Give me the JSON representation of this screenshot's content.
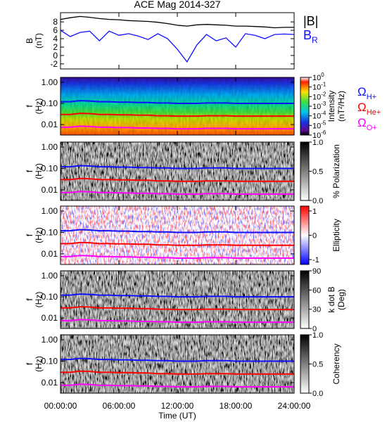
{
  "chart_data": [
    {
      "type": "line",
      "title": "ACE Mag 2014-327",
      "ylabel": "B",
      "ylabel_unit": "(nT)",
      "x": [
        0,
        1,
        2,
        3,
        4,
        5,
        6,
        7,
        8,
        9,
        10,
        11,
        12,
        13,
        14,
        15,
        16,
        17,
        18,
        19,
        20,
        21,
        22,
        23,
        24
      ],
      "xlim": [
        0,
        24
      ],
      "ylim": [
        -3.2,
        10.2
      ],
      "yticks": [
        -2,
        0,
        2,
        4,
        6,
        8
      ],
      "series": [
        {
          "name": "|B|",
          "color": "#000000",
          "values": [
            8.6,
            9.0,
            9.3,
            9.1,
            8.8,
            8.6,
            8.5,
            8.3,
            8.2,
            8.1,
            7.9,
            7.6,
            7.2,
            7.0,
            7.3,
            7.4,
            7.3,
            7.2,
            7.0,
            7.0,
            6.9,
            6.8,
            6.6,
            6.7,
            6.7
          ]
        },
        {
          "name": "B",
          "name_sub": "R",
          "color": "#1010ff",
          "values": [
            6.0,
            4.5,
            5.5,
            5.8,
            3.5,
            5.8,
            4.8,
            5.2,
            4.6,
            3.8,
            5.2,
            4.0,
            1.5,
            -1.5,
            2.5,
            5.0,
            3.5,
            4.2,
            2.0,
            5.2,
            4.8,
            4.0,
            5.0,
            5.1,
            5.0
          ]
        }
      ]
    },
    {
      "type": "spectrogram",
      "ylabel": "f",
      "ylabel_unit": "(Hz)",
      "log_y": true,
      "colormap": "rainbow",
      "x": [
        0,
        1,
        2,
        3,
        4,
        5,
        6,
        7,
        8,
        9,
        10,
        11,
        12,
        13,
        14,
        15,
        16,
        17,
        18,
        19,
        20,
        21,
        22,
        23,
        24
      ],
      "xlim": [
        0,
        24
      ],
      "ylim": [
        0.0032,
        1.7
      ],
      "yticks": [
        {
          "value": 1,
          "label": "1.00"
        },
        {
          "value": 0.1,
          "label": "0.10"
        },
        {
          "value": 0.01,
          "label": "0.01"
        }
      ],
      "colorbar": {
        "label": "Intensity",
        "label_unit": "(nT²/Hz)",
        "log": true,
        "zlim": [
          1e-06,
          1
        ],
        "ticks": [
          {
            "value": 1,
            "label": "10",
            "sup": "0"
          },
          {
            "value": 0.1,
            "label": "10",
            "sup": "-1"
          },
          {
            "value": 0.01,
            "label": "10",
            "sup": "-2"
          },
          {
            "value": 0.001,
            "label": "10",
            "sup": "-3"
          },
          {
            "value": 0.0001,
            "label": "10",
            "sup": "-4"
          },
          {
            "value": 1e-05,
            "label": "10",
            "sup": "-5"
          },
          {
            "value": 1e-06,
            "label": "10",
            "sup": "-6"
          }
        ]
      },
      "series": [
        {
          "name": "Ω",
          "name_sub": "H+",
          "color": "#1010ff",
          "values": [
            0.12,
            0.12,
            0.135,
            0.13,
            0.12,
            0.12,
            0.115,
            0.115,
            0.11,
            0.11,
            0.105,
            0.105,
            0.1,
            0.1,
            0.1,
            0.105,
            0.105,
            0.105,
            0.1,
            0.1,
            0.1,
            0.1,
            0.1,
            0.1,
            0.1
          ]
        },
        {
          "name": "Ω",
          "name_sub": "He+",
          "color": "#ff0000",
          "values": [
            0.03,
            0.03,
            0.034,
            0.033,
            0.03,
            0.03,
            0.029,
            0.029,
            0.028,
            0.028,
            0.026,
            0.026,
            0.025,
            0.025,
            0.025,
            0.026,
            0.026,
            0.026,
            0.025,
            0.025,
            0.025,
            0.025,
            0.025,
            0.025,
            0.025
          ]
        },
        {
          "name": "Ω",
          "name_sub": "O+",
          "color": "#ff00ff",
          "values": [
            0.0075,
            0.0075,
            0.0084,
            0.0081,
            0.0075,
            0.0075,
            0.0072,
            0.0072,
            0.0069,
            0.0069,
            0.0066,
            0.0066,
            0.0063,
            0.0063,
            0.0063,
            0.0066,
            0.0066,
            0.0066,
            0.0063,
            0.0063,
            0.0063,
            0.0063,
            0.0063,
            0.0063,
            0.0063
          ]
        }
      ]
    },
    {
      "type": "spectrogram",
      "ylabel": "f",
      "ylabel_unit": "(Hz)",
      "log_y": true,
      "colormap": "gray",
      "x": [
        0,
        1,
        2,
        3,
        4,
        5,
        6,
        7,
        8,
        9,
        10,
        11,
        12,
        13,
        14,
        15,
        16,
        17,
        18,
        19,
        20,
        21,
        22,
        23,
        24
      ],
      "xlim": [
        0,
        24
      ],
      "ylim": [
        0.0032,
        1.7
      ],
      "yticks": [
        {
          "value": 1,
          "label": "1.00"
        },
        {
          "value": 0.1,
          "label": "0.10"
        },
        {
          "value": 0.01,
          "label": "0.01"
        }
      ],
      "colorbar": {
        "label": "% Polarization",
        "zlim": [
          0,
          1
        ],
        "ticks": [
          {
            "value": 1,
            "label": "1.0"
          },
          {
            "value": 0.5,
            "label": "0.5"
          },
          {
            "value": 0,
            "label": "0.0"
          }
        ]
      },
      "series": [
        {
          "color": "#1010ff",
          "values": [
            0.12,
            0.12,
            0.135,
            0.13,
            0.12,
            0.12,
            0.115,
            0.115,
            0.11,
            0.11,
            0.105,
            0.105,
            0.1,
            0.1,
            0.1,
            0.105,
            0.105,
            0.105,
            0.1,
            0.1,
            0.1,
            0.1,
            0.1,
            0.1,
            0.1
          ]
        },
        {
          "color": "#ff0000",
          "values": [
            0.03,
            0.03,
            0.034,
            0.033,
            0.03,
            0.03,
            0.029,
            0.029,
            0.028,
            0.028,
            0.026,
            0.026,
            0.025,
            0.025,
            0.025,
            0.026,
            0.026,
            0.026,
            0.025,
            0.025,
            0.025,
            0.025,
            0.025,
            0.025,
            0.025
          ]
        },
        {
          "color": "#ff00ff",
          "values": [
            0.0075,
            0.0075,
            0.0084,
            0.0081,
            0.0075,
            0.0075,
            0.0072,
            0.0072,
            0.0069,
            0.0069,
            0.0066,
            0.0066,
            0.0063,
            0.0063,
            0.0063,
            0.0066,
            0.0066,
            0.0066,
            0.0063,
            0.0063,
            0.0063,
            0.0063,
            0.0063,
            0.0063,
            0.0063
          ]
        }
      ]
    },
    {
      "type": "spectrogram",
      "ylabel": "f",
      "ylabel_unit": "(Hz)",
      "log_y": true,
      "colormap": "bwr",
      "x": [
        0,
        1,
        2,
        3,
        4,
        5,
        6,
        7,
        8,
        9,
        10,
        11,
        12,
        13,
        14,
        15,
        16,
        17,
        18,
        19,
        20,
        21,
        22,
        23,
        24
      ],
      "xlim": [
        0,
        24
      ],
      "ylim": [
        0.0032,
        1.7
      ],
      "yticks": [
        {
          "value": 1,
          "label": "1.00"
        },
        {
          "value": 0.1,
          "label": "0.10"
        },
        {
          "value": 0.01,
          "label": "0.01"
        }
      ],
      "colorbar": {
        "label": "Ellipticity",
        "zlim": [
          -1.2,
          1.2
        ],
        "ticks": [
          1,
          0,
          -1
        ]
      },
      "series": [
        {
          "color": "#1010ff",
          "values": [
            0.12,
            0.12,
            0.135,
            0.13,
            0.12,
            0.12,
            0.115,
            0.115,
            0.11,
            0.11,
            0.105,
            0.105,
            0.1,
            0.1,
            0.1,
            0.105,
            0.105,
            0.105,
            0.1,
            0.1,
            0.1,
            0.1,
            0.1,
            0.1,
            0.1
          ]
        },
        {
          "color": "#ff0000",
          "values": [
            0.03,
            0.03,
            0.034,
            0.033,
            0.03,
            0.03,
            0.029,
            0.029,
            0.028,
            0.028,
            0.026,
            0.026,
            0.025,
            0.025,
            0.025,
            0.026,
            0.026,
            0.026,
            0.025,
            0.025,
            0.025,
            0.025,
            0.025,
            0.025,
            0.025
          ]
        },
        {
          "color": "#ff00ff",
          "values": [
            0.0075,
            0.0075,
            0.0084,
            0.0081,
            0.0075,
            0.0075,
            0.0072,
            0.0072,
            0.0069,
            0.0069,
            0.0066,
            0.0066,
            0.0063,
            0.0063,
            0.0063,
            0.0066,
            0.0066,
            0.0066,
            0.0063,
            0.0063,
            0.0063,
            0.0063,
            0.0063,
            0.0063,
            0.0063
          ]
        }
      ]
    },
    {
      "type": "spectrogram",
      "ylabel": "f",
      "ylabel_unit": "(Hz)",
      "log_y": true,
      "colormap": "gray",
      "x": [
        0,
        1,
        2,
        3,
        4,
        5,
        6,
        7,
        8,
        9,
        10,
        11,
        12,
        13,
        14,
        15,
        16,
        17,
        18,
        19,
        20,
        21,
        22,
        23,
        24
      ],
      "xlim": [
        0,
        24
      ],
      "ylim": [
        0.0032,
        1.7
      ],
      "yticks": [
        {
          "value": 1,
          "label": "1.00"
        },
        {
          "value": 0.1,
          "label": "0.10"
        },
        {
          "value": 0.01,
          "label": "0.01"
        }
      ],
      "colorbar": {
        "label": "k dot B",
        "label_unit": "(Deg)",
        "zlim": [
          0,
          90
        ],
        "ticks": [
          90,
          60,
          30,
          0
        ]
      },
      "series": [
        {
          "color": "#1010ff",
          "values": [
            0.12,
            0.12,
            0.135,
            0.13,
            0.12,
            0.12,
            0.115,
            0.115,
            0.11,
            0.11,
            0.105,
            0.105,
            0.1,
            0.1,
            0.1,
            0.105,
            0.105,
            0.105,
            0.1,
            0.1,
            0.1,
            0.1,
            0.1,
            0.1,
            0.1
          ]
        },
        {
          "color": "#ff0000",
          "values": [
            0.03,
            0.03,
            0.034,
            0.033,
            0.03,
            0.03,
            0.029,
            0.029,
            0.028,
            0.028,
            0.026,
            0.026,
            0.025,
            0.025,
            0.025,
            0.026,
            0.026,
            0.026,
            0.025,
            0.025,
            0.025,
            0.025,
            0.025,
            0.025,
            0.025
          ]
        },
        {
          "color": "#ff00ff",
          "values": [
            0.0075,
            0.0075,
            0.0084,
            0.0081,
            0.0075,
            0.0075,
            0.0072,
            0.0072,
            0.0069,
            0.0069,
            0.0066,
            0.0066,
            0.0063,
            0.0063,
            0.0063,
            0.0066,
            0.0066,
            0.0066,
            0.0063,
            0.0063,
            0.0063,
            0.0063,
            0.0063,
            0.0063,
            0.0063
          ]
        }
      ]
    },
    {
      "type": "spectrogram",
      "ylabel": "f",
      "ylabel_unit": "(Hz)",
      "log_y": true,
      "colormap": "gray",
      "x": [
        0,
        1,
        2,
        3,
        4,
        5,
        6,
        7,
        8,
        9,
        10,
        11,
        12,
        13,
        14,
        15,
        16,
        17,
        18,
        19,
        20,
        21,
        22,
        23,
        24
      ],
      "xlim": [
        0,
        24
      ],
      "ylim": [
        0.0032,
        1.7
      ],
      "yticks": [
        {
          "value": 1,
          "label": "1.00"
        },
        {
          "value": 0.1,
          "label": "0.10"
        },
        {
          "value": 0.01,
          "label": "0.01"
        }
      ],
      "colorbar": {
        "label": "Coherency",
        "zlim": [
          0,
          1
        ],
        "ticks": [
          {
            "value": 1,
            "label": "1.0"
          },
          {
            "value": 0.5,
            "label": "0.5"
          },
          {
            "value": 0,
            "label": "0.0"
          }
        ]
      },
      "xlabel": "Time (UT)",
      "xticks": [
        {
          "value": 0,
          "label": "00:00:00"
        },
        {
          "value": 6,
          "label": "06:00:00"
        },
        {
          "value": 12,
          "label": "12:00:00"
        },
        {
          "value": 18,
          "label": "18:00:00"
        },
        {
          "value": 24,
          "label": "24:00:00"
        }
      ],
      "series": [
        {
          "color": "#1010ff",
          "values": [
            0.12,
            0.12,
            0.135,
            0.13,
            0.12,
            0.12,
            0.115,
            0.115,
            0.11,
            0.11,
            0.105,
            0.105,
            0.1,
            0.1,
            0.1,
            0.105,
            0.105,
            0.105,
            0.1,
            0.1,
            0.1,
            0.1,
            0.1,
            0.1,
            0.1
          ]
        },
        {
          "color": "#ff0000",
          "values": [
            0.03,
            0.03,
            0.034,
            0.033,
            0.03,
            0.03,
            0.029,
            0.029,
            0.028,
            0.028,
            0.026,
            0.026,
            0.025,
            0.025,
            0.025,
            0.026,
            0.026,
            0.026,
            0.025,
            0.025,
            0.025,
            0.025,
            0.025,
            0.025,
            0.025
          ]
        },
        {
          "color": "#ff00ff",
          "values": [
            0.0075,
            0.0075,
            0.0084,
            0.0081,
            0.0075,
            0.0075,
            0.0072,
            0.0072,
            0.0069,
            0.0069,
            0.0066,
            0.0066,
            0.0063,
            0.0063,
            0.0063,
            0.0066,
            0.0066,
            0.0066,
            0.0063,
            0.0063,
            0.0063,
            0.0063,
            0.0063,
            0.0063,
            0.0063
          ]
        }
      ]
    }
  ]
}
